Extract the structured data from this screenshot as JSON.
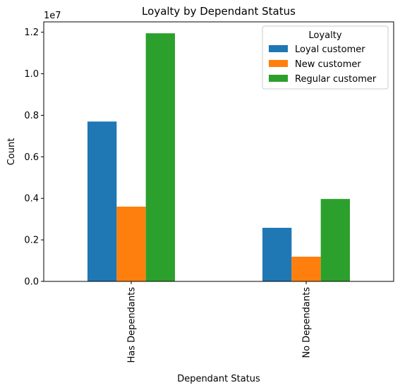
{
  "chart_data": {
    "type": "bar",
    "title": "Loyalty by Dependant Status",
    "xlabel": "Dependant Status",
    "ylabel": "Count",
    "y_offset_label": "1e7",
    "y_scale": 10000000,
    "ylim": [
      0,
      12500000
    ],
    "yticks": [
      0,
      2000000,
      4000000,
      6000000,
      8000000,
      10000000,
      12000000
    ],
    "ytick_labels": [
      "0.0",
      "0.2",
      "0.4",
      "0.6",
      "0.8",
      "1.0",
      "1.2"
    ],
    "categories": [
      "Has Dependants",
      "No Dependants"
    ],
    "series": [
      {
        "name": "Loyal customer",
        "color": "#1f77b4",
        "values": [
          7700000,
          2580000
        ]
      },
      {
        "name": "New customer",
        "color": "#ff7f0e",
        "values": [
          3600000,
          1190000
        ]
      },
      {
        "name": "Regular customer",
        "color": "#2ca02c",
        "values": [
          11950000,
          3970000
        ]
      }
    ],
    "legend": {
      "title": "Loyalty",
      "placement": "top-right"
    },
    "grid": false
  }
}
